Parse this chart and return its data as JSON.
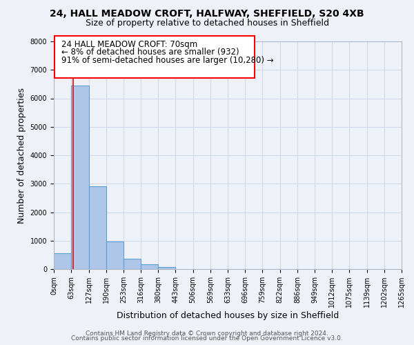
{
  "title_line1": "24, HALL MEADOW CROFT, HALFWAY, SHEFFIELD, S20 4XB",
  "title_line2": "Size of property relative to detached houses in Sheffield",
  "xlabel": "Distribution of detached houses by size in Sheffield",
  "ylabel": "Number of detached properties",
  "bin_edges": [
    0,
    63,
    127,
    190,
    253,
    316,
    380,
    443,
    506,
    569,
    633,
    696,
    759,
    822,
    886,
    949,
    1012,
    1075,
    1139,
    1202,
    1265
  ],
  "bin_labels": [
    "0sqm",
    "63sqm",
    "127sqm",
    "190sqm",
    "253sqm",
    "316sqm",
    "380sqm",
    "443sqm",
    "506sqm",
    "569sqm",
    "633sqm",
    "696sqm",
    "759sqm",
    "822sqm",
    "886sqm",
    "949sqm",
    "1012sqm",
    "1075sqm",
    "1139sqm",
    "1202sqm",
    "1265sqm"
  ],
  "bar_heights": [
    550,
    6450,
    2920,
    975,
    360,
    160,
    80,
    0,
    0,
    0,
    0,
    0,
    0,
    0,
    0,
    0,
    0,
    0,
    0,
    0
  ],
  "bar_color": "#aec6e8",
  "bar_edge_color": "#5a9fd4",
  "property_line_x": 70,
  "annotation_text_lines": [
    "24 HALL MEADOW CROFT: 70sqm",
    "← 8% of detached houses are smaller (932)",
    "91% of semi-detached houses are larger (10,280) →"
  ],
  "ylim": [
    0,
    8000
  ],
  "yticks": [
    0,
    1000,
    2000,
    3000,
    4000,
    5000,
    6000,
    7000,
    8000
  ],
  "grid_color": "#d0d8e8",
  "background_color": "#eef2f8",
  "footer_line1": "Contains HM Land Registry data © Crown copyright and database right 2024.",
  "footer_line2": "Contains public sector information licensed under the Open Government Licence v3.0.",
  "title_fontsize": 10,
  "subtitle_fontsize": 9,
  "axis_label_fontsize": 9,
  "tick_fontsize": 7,
  "annotation_fontsize": 8.5,
  "footer_fontsize": 6.5
}
